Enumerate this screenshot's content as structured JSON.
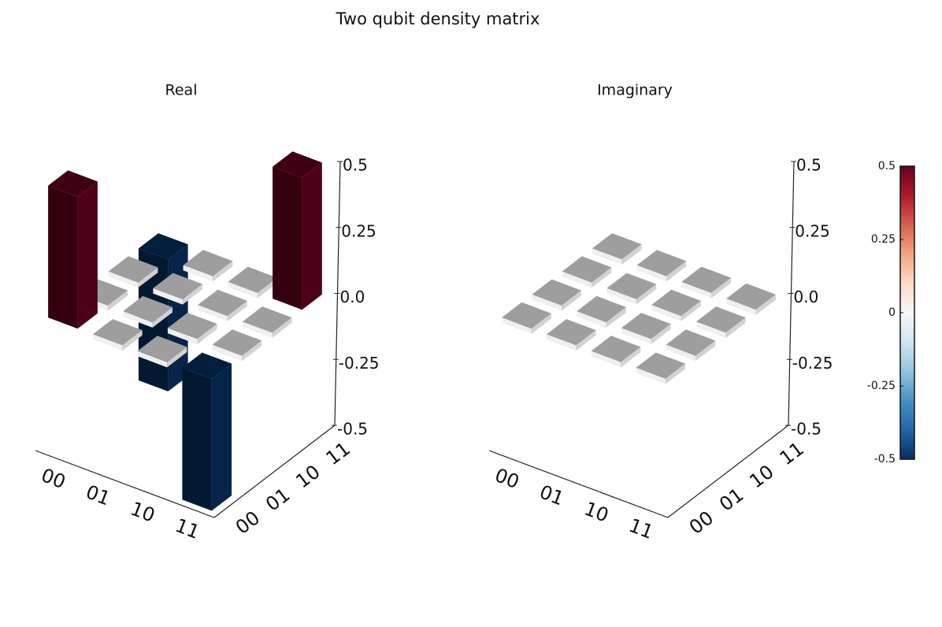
{
  "title": "Two qubit density matrix",
  "chart_data": [
    {
      "type": "bar3d",
      "title": "Real",
      "x_categories": [
        "00",
        "01",
        "10",
        "11"
      ],
      "y_categories": [
        "00",
        "01",
        "10",
        "11"
      ],
      "values": [
        [
          0.5,
          0,
          0,
          -0.5
        ],
        [
          0,
          0,
          0,
          0
        ],
        [
          0,
          0,
          0,
          0
        ],
        [
          -0.5,
          0,
          0,
          0.5
        ]
      ],
      "zlim": [
        -0.5,
        0.5
      ],
      "zticks": [
        -0.5,
        -0.25,
        {
          "value": 0,
          "label": "0.0"
        },
        0.25,
        0.5
      ],
      "colormap": "RdBu_r"
    },
    {
      "type": "bar3d",
      "title": "Imaginary",
      "x_categories": [
        "00",
        "01",
        "10",
        "11"
      ],
      "y_categories": [
        "00",
        "01",
        "10",
        "11"
      ],
      "values": [
        [
          0,
          0,
          0,
          0
        ],
        [
          0,
          0,
          0,
          0
        ],
        [
          0,
          0,
          0,
          0
        ],
        [
          0,
          0,
          0,
          0
        ]
      ],
      "zlim": [
        -0.5,
        0.5
      ],
      "zticks": [
        -0.5,
        -0.25,
        {
          "value": 0,
          "label": "0.0"
        },
        0.25,
        0.5
      ],
      "colormap": "RdBu_r"
    }
  ],
  "colorbar": {
    "lim": [
      -0.5,
      0.5
    ],
    "ticks": [
      -0.5,
      -0.25,
      0,
      0.25,
      0.5
    ],
    "colormap": "RdBu_r"
  }
}
